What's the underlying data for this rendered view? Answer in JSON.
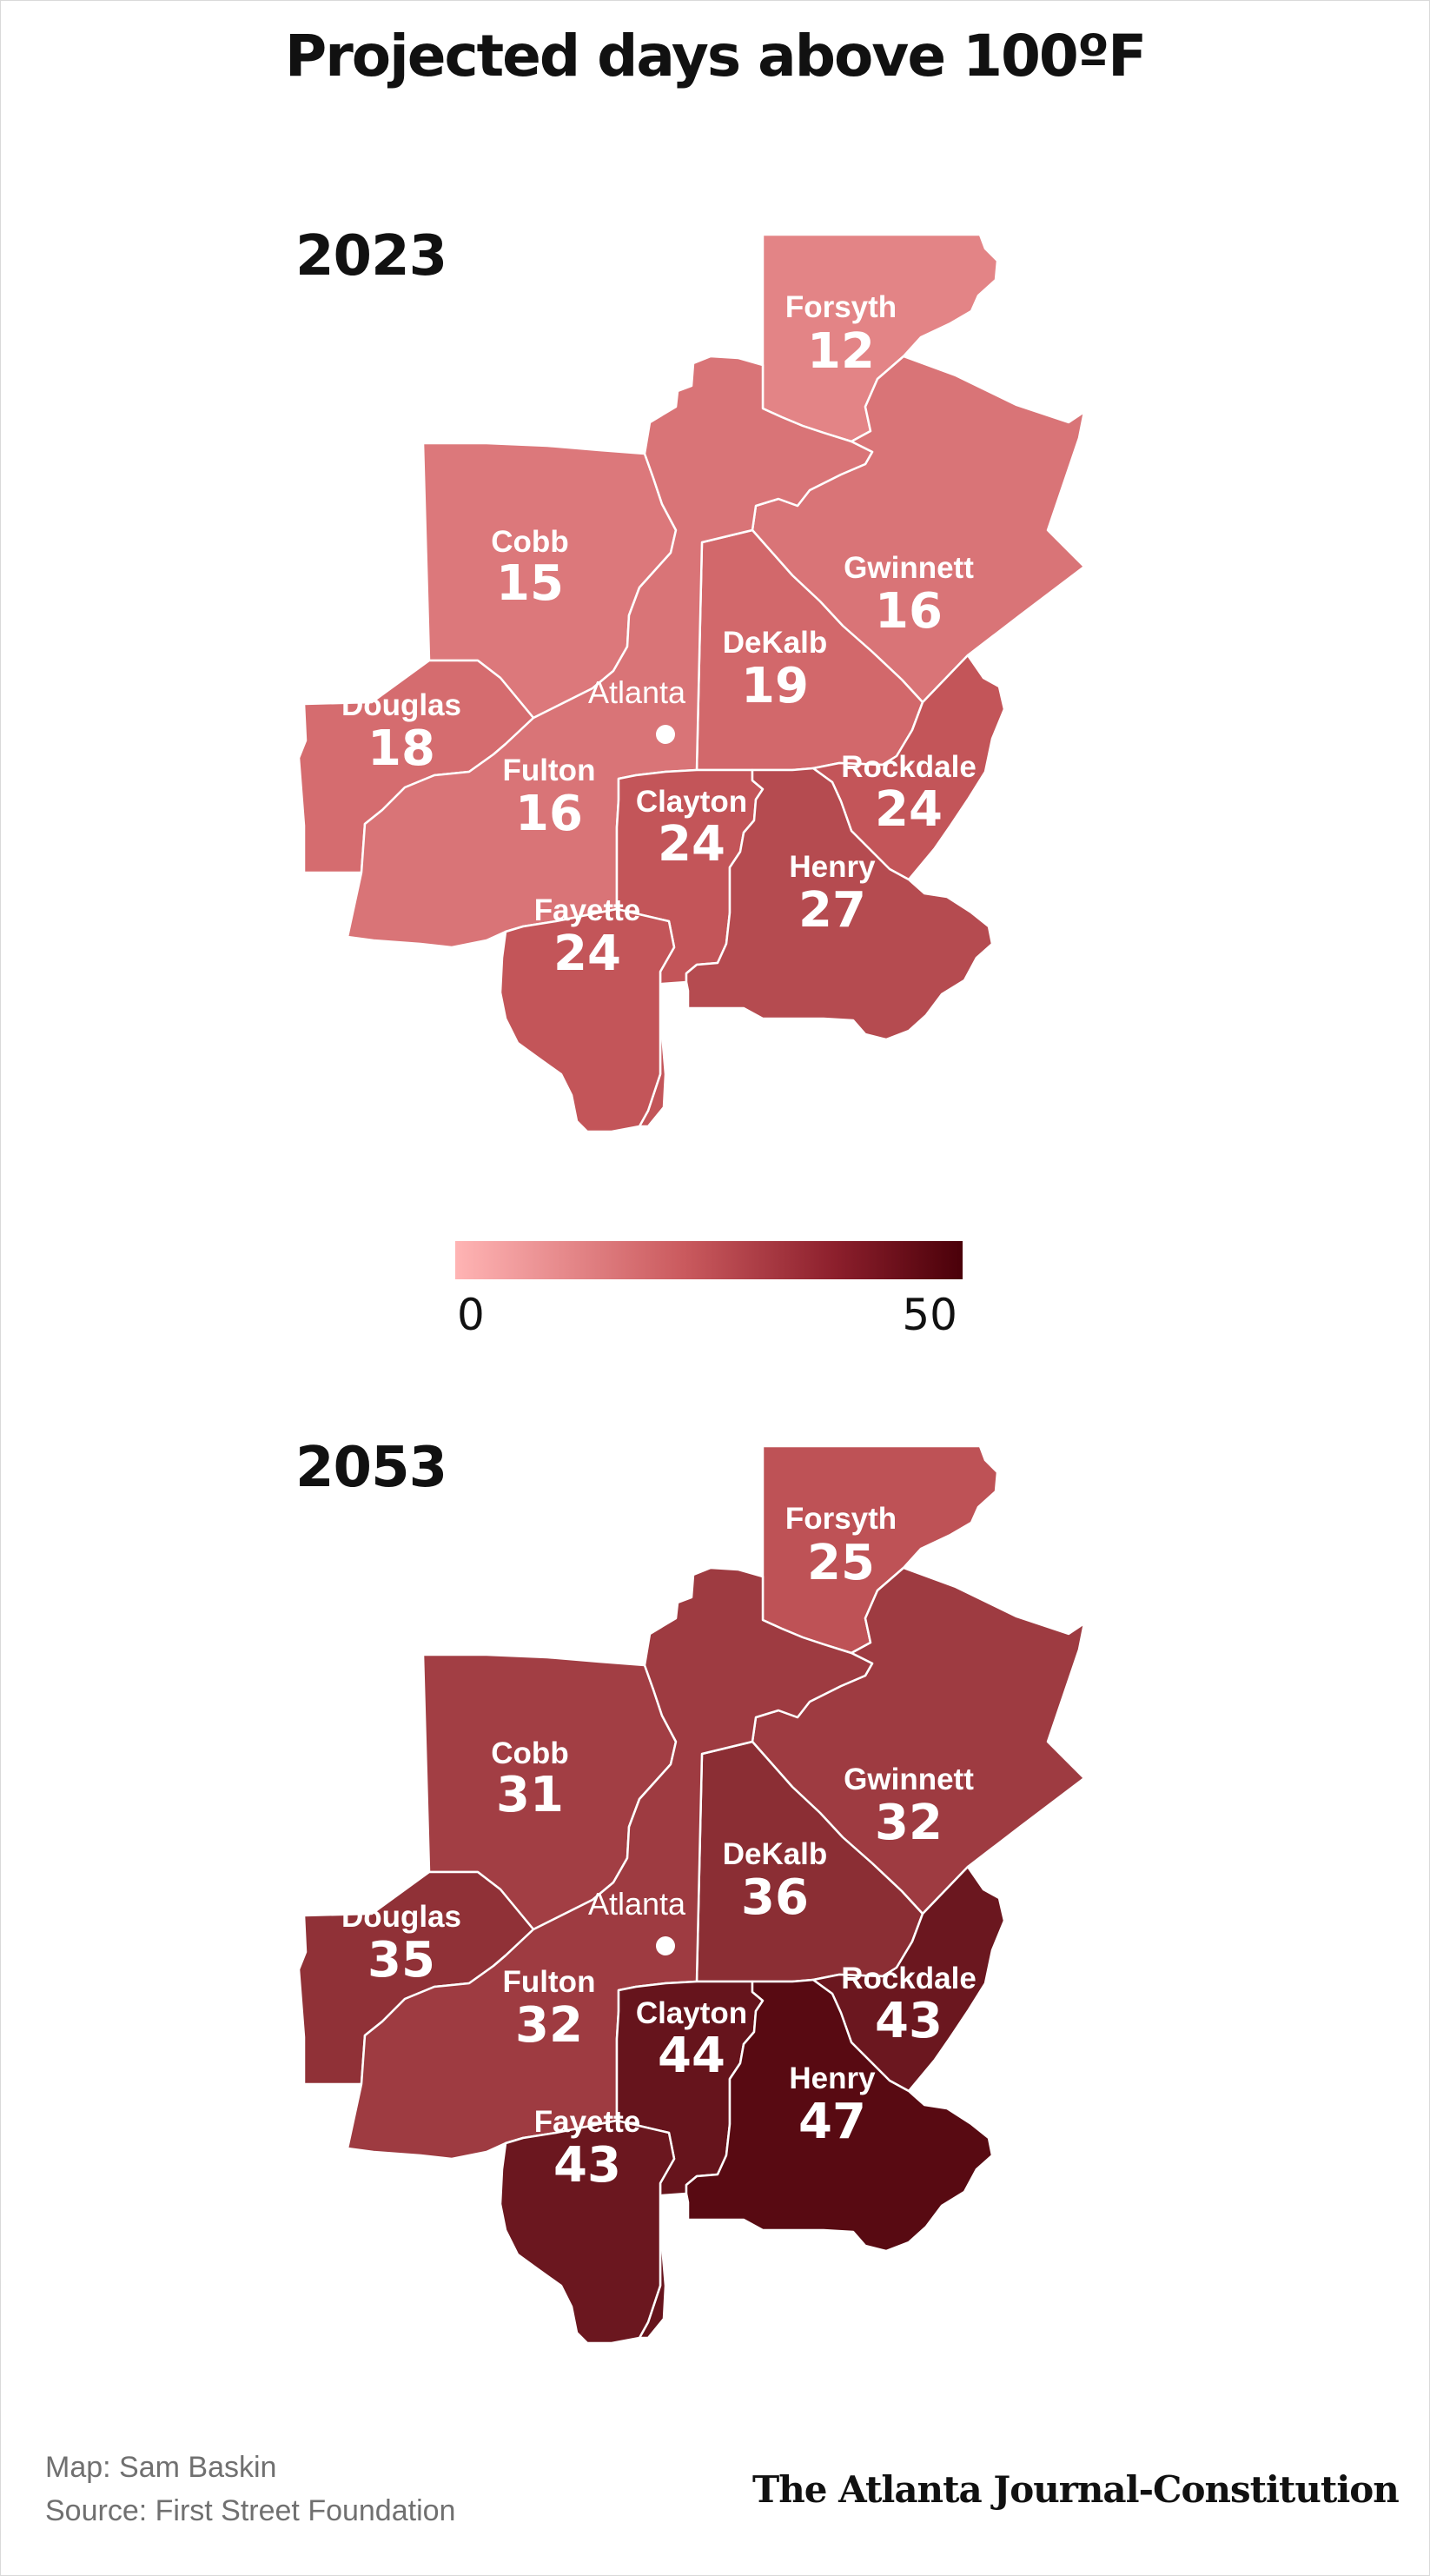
{
  "title": "Projected days above 100ºF",
  "colors": {
    "legend_low": "#ffb4b4",
    "legend_high": "#4a0009"
  },
  "legend": {
    "min_label": "0",
    "max_label": "50",
    "min": 0,
    "max": 50
  },
  "city_label": "Atlanta",
  "maps": [
    {
      "year": "2023",
      "counties": [
        {
          "name": "Forsyth",
          "value": "12"
        },
        {
          "name": "Cobb",
          "value": "15"
        },
        {
          "name": "Gwinnett",
          "value": "16"
        },
        {
          "name": "DeKalb",
          "value": "19"
        },
        {
          "name": "Douglas",
          "value": "18"
        },
        {
          "name": "Fulton",
          "value": "16"
        },
        {
          "name": "Rockdale",
          "value": "24"
        },
        {
          "name": "Clayton",
          "value": "24"
        },
        {
          "name": "Henry",
          "value": "27"
        },
        {
          "name": "Fayette",
          "value": "24"
        }
      ]
    },
    {
      "year": "2053",
      "counties": [
        {
          "name": "Forsyth",
          "value": "25"
        },
        {
          "name": "Cobb",
          "value": "31"
        },
        {
          "name": "Gwinnett",
          "value": "32"
        },
        {
          "name": "DeKalb",
          "value": "36"
        },
        {
          "name": "Douglas",
          "value": "35"
        },
        {
          "name": "Fulton",
          "value": "32"
        },
        {
          "name": "Rockdale",
          "value": "43"
        },
        {
          "name": "Clayton",
          "value": "44"
        },
        {
          "name": "Henry",
          "value": "47"
        },
        {
          "name": "Fayette",
          "value": "43"
        }
      ]
    }
  ],
  "credits": {
    "map": "Map: Sam Baskin",
    "source": "Source: First Street Foundation"
  },
  "brand": "The Atlanta Journal-Constitution"
}
